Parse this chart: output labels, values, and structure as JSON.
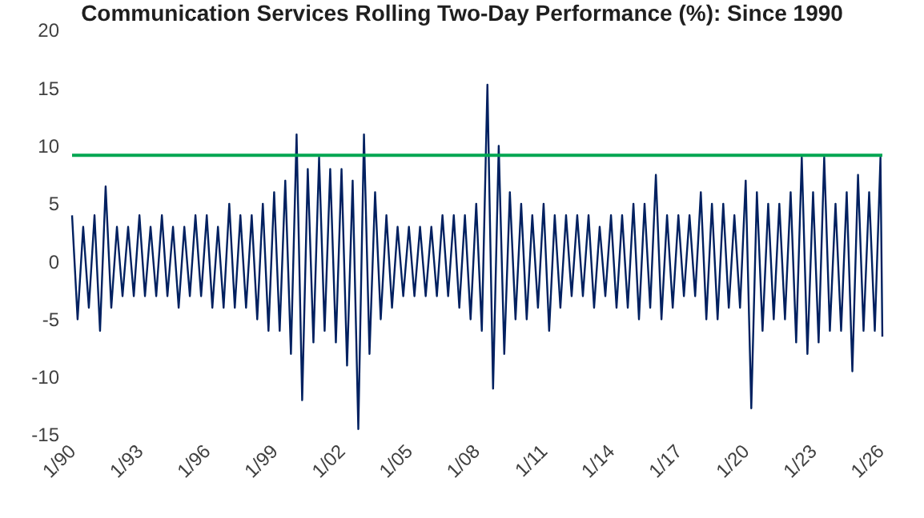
{
  "chart_data": {
    "type": "line",
    "title": "Communication Services Rolling Two-Day Performance (%): Since 1990",
    "x": [
      "1990-01",
      "1990-04",
      "1990-07",
      "1990-10",
      "1991-01",
      "1991-04",
      "1991-07",
      "1991-10",
      "1992-01",
      "1992-04",
      "1992-07",
      "1992-10",
      "1993-01",
      "1993-04",
      "1993-07",
      "1993-10",
      "1994-01",
      "1994-04",
      "1994-07",
      "1994-10",
      "1995-01",
      "1995-04",
      "1995-07",
      "1995-10",
      "1996-01",
      "1996-04",
      "1996-07",
      "1996-10",
      "1997-01",
      "1997-04",
      "1997-07",
      "1997-10",
      "1998-01",
      "1998-04",
      "1998-07",
      "1998-10",
      "1999-01",
      "1999-04",
      "1999-07",
      "1999-10",
      "2000-01",
      "2000-04",
      "2000-07",
      "2000-10",
      "2001-01",
      "2001-04",
      "2001-07",
      "2001-10",
      "2002-01",
      "2002-04",
      "2002-07",
      "2002-10",
      "2003-01",
      "2003-04",
      "2003-07",
      "2003-10",
      "2004-01",
      "2004-04",
      "2004-07",
      "2004-10",
      "2005-01",
      "2005-04",
      "2005-07",
      "2005-10",
      "2006-01",
      "2006-04",
      "2006-07",
      "2006-10",
      "2007-01",
      "2007-04",
      "2007-07",
      "2007-10",
      "2008-01",
      "2008-04",
      "2008-07",
      "2008-10",
      "2009-01",
      "2009-04",
      "2009-07",
      "2009-10",
      "2010-01",
      "2010-04",
      "2010-07",
      "2010-10",
      "2011-01",
      "2011-04",
      "2011-07",
      "2011-10",
      "2012-01",
      "2012-04",
      "2012-07",
      "2012-10",
      "2013-01",
      "2013-04",
      "2013-07",
      "2013-10",
      "2014-01",
      "2014-04",
      "2014-07",
      "2014-10",
      "2015-01",
      "2015-04",
      "2015-07",
      "2015-10",
      "2016-01",
      "2016-04",
      "2016-07",
      "2016-10",
      "2017-01",
      "2017-04",
      "2017-07",
      "2017-10",
      "2018-01",
      "2018-04",
      "2018-07",
      "2018-10",
      "2019-01",
      "2019-04",
      "2019-07",
      "2019-10",
      "2020-01",
      "2020-04",
      "2020-07",
      "2020-10",
      "2021-01",
      "2021-04",
      "2021-07",
      "2021-10",
      "2022-01",
      "2022-04",
      "2022-07",
      "2022-10",
      "2023-01",
      "2023-04",
      "2023-07",
      "2023-10",
      "2024-01",
      "2024-04",
      "2024-07",
      "2024-10",
      "2025-01",
      "2025-04",
      "2025-07",
      "2025-10",
      "2026-01",
      "2026-02"
    ],
    "series": [
      {
        "color": "#002060",
        "values": [
          4,
          -5,
          3,
          -4,
          4,
          -6,
          6.5,
          -4,
          3,
          -3,
          3,
          -3,
          4,
          -3,
          3,
          -3,
          4,
          -3,
          3,
          -4,
          3,
          -3,
          4,
          -3,
          4,
          -4,
          3,
          -4,
          5,
          -4,
          4,
          -4,
          4,
          -5,
          5,
          -6,
          6,
          -6,
          7,
          -8,
          11,
          -12,
          8,
          -7,
          9,
          -6,
          8,
          -7,
          8,
          -9,
          7,
          -14.5,
          11,
          -8,
          6,
          -5,
          4,
          -4,
          3,
          -3,
          3,
          -3,
          3,
          -3,
          3,
          -3,
          4,
          -3,
          4,
          -4,
          4,
          -5,
          5,
          -6,
          15.3,
          -11,
          10,
          -8,
          6,
          -5,
          5,
          -5,
          4,
          -4,
          5,
          -6,
          4,
          -4,
          4,
          -3,
          4,
          -3,
          4,
          -4,
          3,
          -3,
          4,
          -4,
          4,
          -4,
          5,
          -5,
          5,
          -4,
          7.5,
          -5,
          4,
          -4,
          4,
          -3,
          4,
          -3,
          6,
          -5,
          5,
          -5,
          5,
          -4,
          4,
          -4,
          7,
          -12.7,
          6,
          -6,
          5,
          -5,
          5,
          -5,
          6,
          -7,
          9,
          -8,
          6,
          -7,
          9,
          -6,
          5,
          -6,
          6,
          -9.5,
          7.5,
          -6,
          6,
          -6,
          9,
          -6.5
        ]
      }
    ],
    "xlim": [
      "1990-01",
      "2026-02"
    ],
    "xticks": [
      {
        "value": "1990-01",
        "label": "1/90"
      },
      {
        "value": "1993-01",
        "label": "1/93"
      },
      {
        "value": "1996-01",
        "label": "1/96"
      },
      {
        "value": "1999-01",
        "label": "1/99"
      },
      {
        "value": "2002-01",
        "label": "1/02"
      },
      {
        "value": "2005-01",
        "label": "1/05"
      },
      {
        "value": "2008-01",
        "label": "1/08"
      },
      {
        "value": "2011-01",
        "label": "1/11"
      },
      {
        "value": "2014-01",
        "label": "1/14"
      },
      {
        "value": "2017-01",
        "label": "1/17"
      },
      {
        "value": "2020-01",
        "label": "1/20"
      },
      {
        "value": "2023-01",
        "label": "1/23"
      },
      {
        "value": "2026-01",
        "label": "1/26"
      }
    ],
    "ylim": [
      -15,
      20
    ],
    "yticks": [
      -15,
      -10,
      -5,
      0,
      5,
      10,
      15,
      20
    ],
    "ref_lines": [
      {
        "axis": "y",
        "value": 9.2,
        "color": "#00a651"
      }
    ],
    "grid": false,
    "marker": "none",
    "line_style": "solid"
  }
}
